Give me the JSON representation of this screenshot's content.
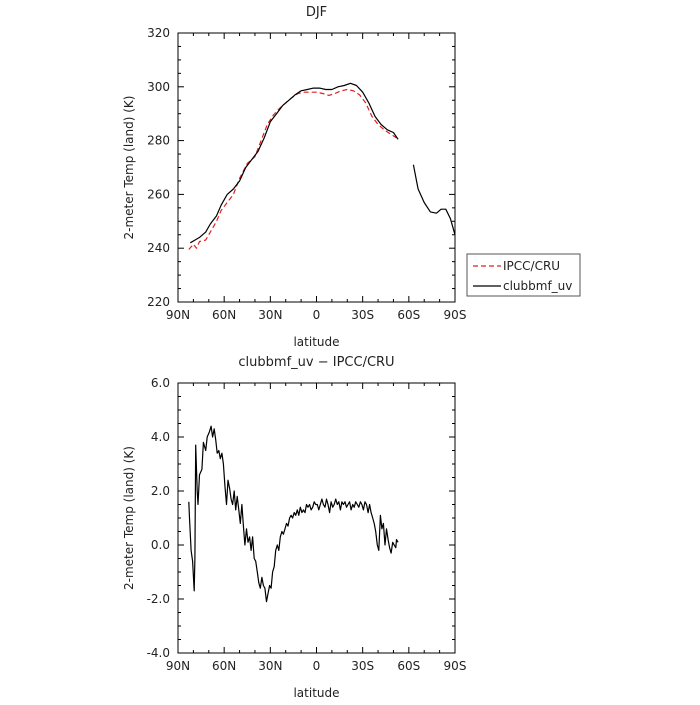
{
  "chart_data": [
    {
      "type": "line",
      "title": "DJF",
      "xlabel": "latitude",
      "ylabel": "2-meter Temp (land) (K)",
      "xlim": [
        90,
        -90
      ],
      "ylim": [
        220,
        320
      ],
      "xticks": [
        90,
        60,
        30,
        0,
        -30,
        -60,
        -90
      ],
      "xtick_labels": [
        "90N",
        "60N",
        "30N",
        "0",
        "30S",
        "60S",
        "90S"
      ],
      "yticks": [
        220,
        240,
        260,
        280,
        300,
        320
      ],
      "ytick_labels": [
        "220",
        "240",
        "260",
        "280",
        "300",
        "320"
      ],
      "legend_position": "outside-right",
      "series": [
        {
          "name": "IPCC/CRU",
          "color": "#e02020",
          "dashed": true,
          "segments": [
            [
              [
                83,
                239.5
              ],
              [
                80,
                241.5
              ],
              [
                78,
                240
              ],
              [
                76,
                242.5
              ],
              [
                72,
                243
              ],
              [
                69,
                246
              ],
              [
                65,
                250
              ],
              [
                62,
                254
              ],
              [
                58,
                257
              ],
              [
                54,
                260
              ],
              [
                50,
                266
              ],
              [
                45,
                271.5
              ],
              [
                40,
                274
              ],
              [
                36,
                280
              ],
              [
                32,
                286
              ],
              [
                28,
                289.5
              ],
              [
                24,
                292
              ],
              [
                20,
                294
              ],
              [
                16,
                296
              ],
              [
                12,
                297.5
              ],
              [
                8,
                298
              ],
              [
                4,
                298
              ],
              [
                0,
                298
              ],
              [
                -4,
                297.5
              ],
              [
                -8,
                296.8
              ],
              [
                -12,
                297.5
              ],
              [
                -16,
                298.5
              ],
              [
                -20,
                299
              ],
              [
                -24,
                298.5
              ],
              [
                -28,
                297
              ],
              [
                -32,
                294
              ],
              [
                -36,
                289
              ],
              [
                -40,
                286
              ],
              [
                -44,
                284
              ],
              [
                -48,
                282.5
              ],
              [
                -52,
                281
              ]
            ]
          ]
        },
        {
          "name": "clubbmf_uv",
          "color": "#000000",
          "dashed": false,
          "segments": [
            [
              [
                82,
                242
              ],
              [
                79,
                243
              ],
              [
                76,
                244
              ],
              [
                72,
                246
              ],
              [
                69,
                249
              ],
              [
                65,
                252
              ],
              [
                62,
                256
              ],
              [
                58,
                260
              ],
              [
                54,
                262
              ],
              [
                50,
                265
              ],
              [
                46,
                270
              ],
              [
                42,
                273
              ],
              [
                38,
                276
              ],
              [
                34,
                281
              ],
              [
                30,
                287
              ],
              [
                26,
                290
              ],
              [
                22,
                293
              ],
              [
                18,
                295
              ],
              [
                14,
                297
              ],
              [
                10,
                298.5
              ],
              [
                6,
                299
              ],
              [
                2,
                299.5
              ],
              [
                -2,
                299.5
              ],
              [
                -6,
                299
              ],
              [
                -10,
                299
              ],
              [
                -14,
                300
              ],
              [
                -18,
                300.5
              ],
              [
                -22,
                301.3
              ],
              [
                -26,
                300.5
              ],
              [
                -30,
                298
              ],
              [
                -34,
                294
              ],
              [
                -38,
                289
              ],
              [
                -42,
                286
              ],
              [
                -46,
                284
              ],
              [
                -50,
                283
              ],
              [
                -53,
                280.5
              ]
            ],
            [
              [
                -63,
                271
              ],
              [
                -66,
                262
              ],
              [
                -70,
                257
              ],
              [
                -74,
                253.5
              ],
              [
                -78,
                253
              ],
              [
                -81,
                254.5
              ],
              [
                -84,
                254.5
              ],
              [
                -87,
                251
              ],
              [
                -90,
                245
              ]
            ]
          ]
        }
      ]
    },
    {
      "type": "line",
      "title": "clubbmf_uv − IPCC/CRU",
      "xlabel": "latitude",
      "ylabel": "2-meter Temp (land) (K)",
      "xlim": [
        90,
        -90
      ],
      "ylim": [
        -4,
        6
      ],
      "xticks": [
        90,
        60,
        30,
        0,
        -30,
        -60,
        -90
      ],
      "xtick_labels": [
        "90N",
        "60N",
        "30N",
        "0",
        "30S",
        "60S",
        "90S"
      ],
      "yticks": [
        -4,
        -2,
        0,
        2,
        4,
        6
      ],
      "ytick_labels": [
        "-4.0",
        "-2.0",
        "0.0",
        "2.0",
        "4.0",
        "6.0"
      ],
      "series": [
        {
          "color": "#000000",
          "segments": [
            [
              [
                83,
                1.6
              ],
              [
                82.5,
                1.0
              ],
              [
                81.5,
                -0.2
              ],
              [
                80.5,
                -0.6
              ],
              [
                79.5,
                -1.7
              ],
              [
                79,
                -0.5
              ],
              [
                78.5,
                3.7
              ],
              [
                77.5,
                2.0
              ],
              [
                77,
                1.5
              ],
              [
                76,
                2.6
              ],
              [
                74.5,
                2.8
              ],
              [
                73.5,
                3.8
              ],
              [
                72,
                3.5
              ],
              [
                71,
                4.0
              ],
              [
                69.5,
                4.2
              ],
              [
                68.5,
                4.4
              ],
              [
                67.5,
                4.0
              ],
              [
                66.5,
                4.3
              ],
              [
                65.5,
                3.9
              ],
              [
                64.5,
                3.4
              ],
              [
                63.5,
                3.5
              ],
              [
                62.5,
                3.2
              ],
              [
                61.5,
                3.4
              ],
              [
                60.5,
                3.0
              ],
              [
                59.5,
                2.2
              ],
              [
                58.5,
                1.5
              ],
              [
                57.5,
                2.4
              ],
              [
                56.5,
                2.1
              ],
              [
                55.5,
                1.7
              ],
              [
                54.5,
                1.5
              ],
              [
                53.5,
                2.0
              ],
              [
                52.5,
                1.3
              ],
              [
                51.5,
                1.8
              ],
              [
                50.5,
                1.3
              ],
              [
                49.5,
                0.8
              ],
              [
                48.5,
                1.5
              ],
              [
                47.5,
                0.7
              ],
              [
                46.5,
                0.0
              ],
              [
                45.5,
                0.6
              ],
              [
                44.5,
                0.1
              ],
              [
                43.5,
                0.3
              ],
              [
                42.5,
                -0.2
              ],
              [
                41.5,
                0.3
              ],
              [
                40.5,
                -0.5
              ],
              [
                39.5,
                -0.6
              ],
              [
                38.5,
                -1.0
              ],
              [
                37.5,
                -1.4
              ],
              [
                36.5,
                -1.6
              ],
              [
                35.5,
                -1.2
              ],
              [
                34.5,
                -1.5
              ],
              [
                33.5,
                -1.6
              ],
              [
                32.5,
                -2.1
              ],
              [
                31.5,
                -1.8
              ],
              [
                30.5,
                -1.5
              ],
              [
                29.5,
                -1.6
              ],
              [
                28.5,
                -1.0
              ],
              [
                27.5,
                -0.8
              ],
              [
                26.5,
                -0.2
              ],
              [
                25.5,
                0.0
              ],
              [
                24.5,
                -0.2
              ],
              [
                23.5,
                0.3
              ],
              [
                22.5,
                0.5
              ],
              [
                21.5,
                0.4
              ],
              [
                20.5,
                0.6
              ],
              [
                19.5,
                0.8
              ],
              [
                18.5,
                0.7
              ],
              [
                17.5,
                1.0
              ],
              [
                16.5,
                1.1
              ],
              [
                15.5,
                1.0
              ],
              [
                14.5,
                1.2
              ],
              [
                13.5,
                1.1
              ],
              [
                12.5,
                1.3
              ],
              [
                11.5,
                1.1
              ],
              [
                10.5,
                1.4
              ],
              [
                9.5,
                1.2
              ],
              [
                8.5,
                1.3
              ],
              [
                7.5,
                1.2
              ],
              [
                6.5,
                1.5
              ],
              [
                5.5,
                1.4
              ],
              [
                4.5,
                1.5
              ],
              [
                3.5,
                1.3
              ],
              [
                2.5,
                1.4
              ],
              [
                1.5,
                1.6
              ],
              [
                0.5,
                1.5
              ],
              [
                -0.5,
                1.5
              ],
              [
                -1.5,
                1.3
              ],
              [
                -2.5,
                1.5
              ],
              [
                -3.5,
                1.7
              ],
              [
                -4.5,
                1.5
              ],
              [
                -5.5,
                1.4
              ],
              [
                -6.5,
                1.7
              ],
              [
                -7.5,
                1.5
              ],
              [
                -8.5,
                1.2
              ],
              [
                -9.5,
                1.6
              ],
              [
                -10.5,
                1.4
              ],
              [
                -11.5,
                1.5
              ],
              [
                -12.5,
                1.7
              ],
              [
                -13.5,
                1.5
              ],
              [
                -14.5,
                1.6
              ],
              [
                -15.5,
                1.3
              ],
              [
                -16.5,
                1.6
              ],
              [
                -17.5,
                1.5
              ],
              [
                -18.5,
                1.6
              ],
              [
                -19.5,
                1.4
              ],
              [
                -20.5,
                1.5
              ],
              [
                -21.5,
                1.6
              ],
              [
                -22.5,
                1.3
              ],
              [
                -23.5,
                1.5
              ],
              [
                -24.5,
                1.4
              ],
              [
                -25.5,
                1.6
              ],
              [
                -26.5,
                1.5
              ],
              [
                -27.5,
                1.4
              ],
              [
                -28.5,
                1.6
              ],
              [
                -29.5,
                1.5
              ],
              [
                -30.5,
                1.3
              ],
              [
                -31.5,
                1.6
              ],
              [
                -32.5,
                1.5
              ],
              [
                -33.5,
                1.2
              ],
              [
                -34.5,
                1.5
              ],
              [
                -35.5,
                1.2
              ],
              [
                -36.5,
                1.0
              ],
              [
                -37.5,
                0.8
              ],
              [
                -38.5,
                0.5
              ],
              [
                -39.5,
                0.0
              ],
              [
                -40.5,
                -0.2
              ],
              [
                -41.5,
                1.1
              ],
              [
                -42.5,
                0.6
              ],
              [
                -43.5,
                0.8
              ],
              [
                -44.5,
                0.0
              ],
              [
                -45.5,
                0.6
              ],
              [
                -46.5,
                0.2
              ],
              [
                -47.5,
                -0.1
              ],
              [
                -48.5,
                -0.3
              ],
              [
                -49.5,
                0.1
              ],
              [
                -50.5,
                0.0
              ],
              [
                -51.5,
                -0.1
              ],
              [
                -52,
                0.2
              ],
              [
                -53,
                0.1
              ]
            ]
          ]
        }
      ]
    }
  ]
}
